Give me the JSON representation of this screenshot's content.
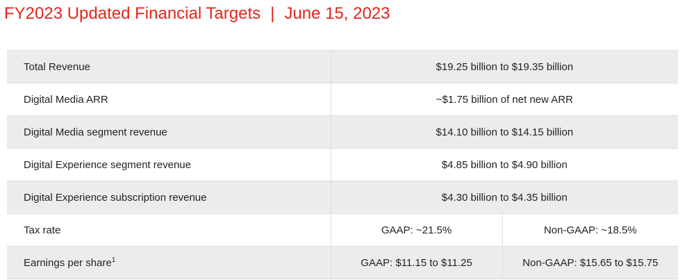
{
  "header": {
    "title": "FY2023 Updated Financial Targets",
    "separator": "|",
    "date": "June 15, 2023"
  },
  "targets": {
    "rows": [
      {
        "label": "Total Revenue",
        "value": "$19.25 billion to $19.35 billion"
      },
      {
        "label": "Digital Media ARR",
        "value": "~$1.75 billion of net new ARR"
      },
      {
        "label": "Digital Media segment revenue",
        "value": "$14.10 billion to $14.15 billion"
      },
      {
        "label": "Digital Experience segment revenue",
        "value": "$4.85 billion to $4.90 billion"
      },
      {
        "label": "Digital Experience subscription revenue",
        "value": "$4.30 billion to $4.35 billion"
      }
    ],
    "tax": {
      "label": "Tax rate",
      "gaap": "GAAP: ~21.5%",
      "non_gaap": "Non-GAAP: ~18.5%"
    },
    "eps": {
      "label": "Earnings per share",
      "footnote": "1",
      "gaap": "GAAP: $11.15 to $11.25",
      "non_gaap": "Non-GAAP: $15.65 to $15.75"
    }
  }
}
